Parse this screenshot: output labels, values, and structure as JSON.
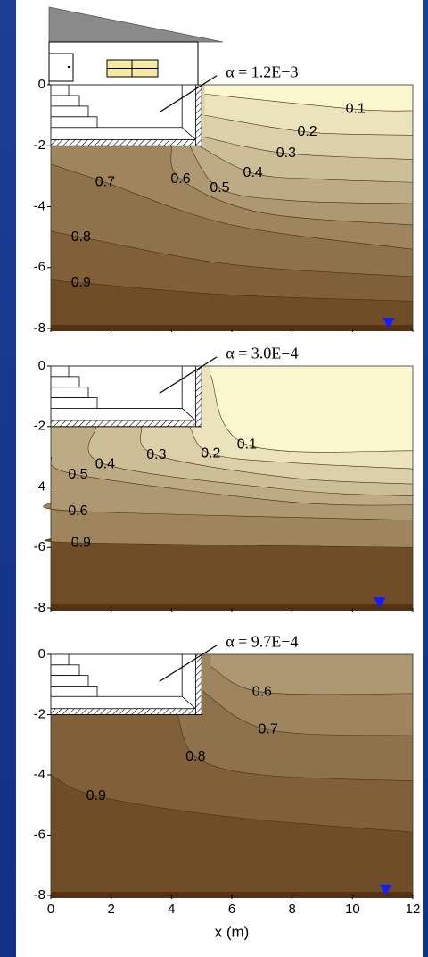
{
  "chart_data": [
    {
      "type": "contour",
      "annotation": "α = 1.2E−3",
      "xlim": [
        0,
        12
      ],
      "ylim": [
        -8,
        0
      ],
      "xticks": [
        0,
        2,
        4,
        6,
        8,
        10,
        12
      ],
      "yticks": [
        0,
        -2,
        -4,
        -6,
        -8
      ],
      "contours": [
        {
          "level": 0.1,
          "x": [
            5.1,
            10.1,
            12
          ],
          "y": [
            -0.3,
            -0.8,
            -0.85
          ]
        },
        {
          "level": 0.2,
          "x": [
            5.1,
            8.5,
            12
          ],
          "y": [
            -1.0,
            -1.55,
            -1.65
          ]
        },
        {
          "level": 0.3,
          "x": [
            5.0,
            7.8,
            12
          ],
          "y": [
            -1.7,
            -2.25,
            -2.45
          ]
        },
        {
          "level": 0.4,
          "x": [
            4.9,
            6.7,
            9,
            12
          ],
          "y": [
            -2.0,
            -2.9,
            -3.1,
            -3.2
          ]
        },
        {
          "level": 0.5,
          "x": [
            4.6,
            5.6,
            8,
            12
          ],
          "y": [
            -2.0,
            -3.4,
            -3.8,
            -3.9
          ]
        },
        {
          "level": 0.6,
          "x": [
            4.0,
            4.3,
            7,
            12
          ],
          "y": [
            -2.0,
            -3.1,
            -4.2,
            -4.6
          ]
        },
        {
          "level": 0.7,
          "x": [
            0,
            1.8,
            6,
            12
          ],
          "y": [
            -2.6,
            -3.2,
            -4.6,
            -5.4
          ]
        },
        {
          "level": 0.8,
          "x": [
            0,
            1,
            6,
            12
          ],
          "y": [
            -4.8,
            -5.0,
            -5.9,
            -6.3
          ]
        },
        {
          "level": 0.9,
          "x": [
            0,
            1,
            6,
            12
          ],
          "y": [
            -6.4,
            -6.5,
            -6.9,
            -7.1
          ]
        }
      ],
      "water_table": {
        "x": 11.2,
        "y": -8
      }
    },
    {
      "type": "contour",
      "annotation": "α = 3.0E−4",
      "xlim": [
        0,
        12
      ],
      "ylim": [
        -8,
        0
      ],
      "xticks": [
        0,
        2,
        4,
        6,
        8,
        10,
        12
      ],
      "yticks": [
        0,
        -2,
        -4,
        -6,
        -8
      ],
      "contours": [
        {
          "level": 0.1,
          "x": [
            5.3,
            6.5,
            12
          ],
          "y": [
            -0.3,
            -2.6,
            -2.8
          ]
        },
        {
          "level": 0.2,
          "x": [
            4.6,
            5.3,
            8,
            12
          ],
          "y": [
            -2.0,
            -2.9,
            -3.2,
            -3.4
          ]
        },
        {
          "level": 0.3,
          "x": [
            3.0,
            3.5,
            8,
            12
          ],
          "y": [
            -2.0,
            -2.95,
            -3.7,
            -3.9
          ]
        },
        {
          "level": 0.4,
          "x": [
            1.5,
            1.8,
            8,
            12
          ],
          "y": [
            -2.0,
            -3.25,
            -4.1,
            -4.3
          ]
        },
        {
          "level": 0.5,
          "x": [
            0,
            0.9,
            8,
            12
          ],
          "y": [
            -3.0,
            -3.6,
            -4.5,
            -4.6
          ]
        },
        {
          "level": 0.6,
          "x": [
            0,
            0.9,
            12
          ],
          "y": [
            -4.5,
            -4.8,
            -5.1
          ]
        },
        {
          "level": 0.9,
          "x": [
            0,
            1,
            12
          ],
          "y": [
            -5.7,
            -5.85,
            -6.0
          ]
        }
      ],
      "water_table": {
        "x": 10.9,
        "y": -8
      }
    },
    {
      "type": "contour",
      "annotation": "α = 9.7E−4",
      "xlim": [
        0,
        12
      ],
      "ylim": [
        -8,
        0
      ],
      "xticks": [
        0,
        2,
        4,
        6,
        8,
        10,
        12
      ],
      "yticks": [
        0,
        -2,
        -4,
        -6,
        -8
      ],
      "x_label": "x (m)",
      "contours": [
        {
          "level": 0.6,
          "x": [
            5.3,
            7,
            12
          ],
          "y": [
            -0.4,
            -1.25,
            -1.3
          ]
        },
        {
          "level": 0.7,
          "x": [
            5.0,
            7.2,
            12
          ],
          "y": [
            -1.2,
            -2.5,
            -2.7
          ]
        },
        {
          "level": 0.8,
          "x": [
            4.2,
            4.8,
            7,
            12
          ],
          "y": [
            -2.0,
            -3.4,
            -4.0,
            -4.2
          ]
        },
        {
          "level": 0.9,
          "x": [
            0,
            1.5,
            6,
            12
          ],
          "y": [
            -4.0,
            -4.7,
            -5.4,
            -5.9
          ]
        }
      ],
      "water_table": {
        "x": 11.1,
        "y": -8
      }
    }
  ]
}
